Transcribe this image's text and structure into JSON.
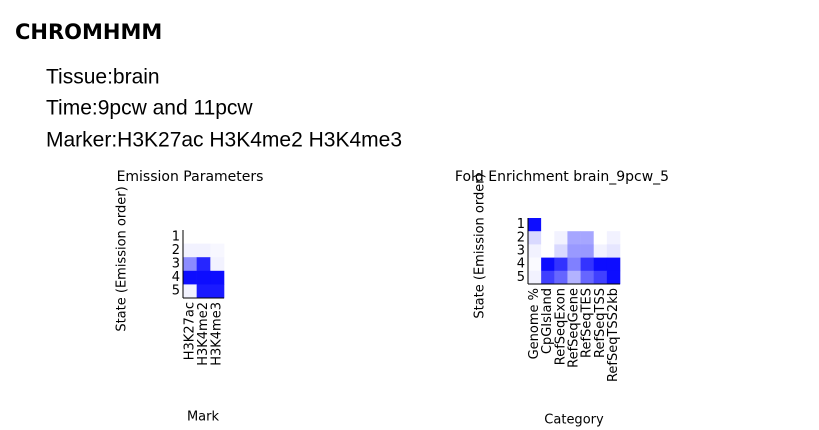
{
  "header": {
    "title": "CHROMHMM",
    "lines": [
      "Tissue:brain",
      "Time:9pcw and 11pcw",
      "Marker:H3K27ac H3K4me2 H3K4me3"
    ]
  },
  "chart_data": [
    {
      "type": "heatmap",
      "title": "Emission Parameters",
      "x_label": "Mark",
      "y_label": "State (Emission order)",
      "color": "#0000ff",
      "rows": [
        "1",
        "2",
        "3",
        "4",
        "5"
      ],
      "columns": [
        "H3K27ac",
        "H3K4me2",
        "H3K4me3"
      ],
      "values": [
        [
          0,
          0,
          0
        ],
        [
          0.05,
          0.05,
          0.03
        ],
        [
          0.45,
          0.85,
          0.05
        ],
        [
          0.95,
          0.95,
          0.95
        ],
        [
          0.05,
          0.9,
          0.9
        ]
      ]
    },
    {
      "type": "heatmap",
      "title": "Fold Enrichment brain_9pcw_5",
      "x_label": "Category",
      "y_label": "State (Emission order)",
      "color": "#0000ff",
      "rows": [
        "1",
        "2",
        "3",
        "4",
        "5"
      ],
      "columns": [
        "Genome %",
        "CpGIsland",
        "RefSeqExon",
        "RefSeqGene",
        "RefSeqTES",
        "RefSeqTSS",
        "RefSeqTSS2kb"
      ],
      "values": [
        [
          0.95,
          0,
          0,
          0,
          0,
          0,
          0
        ],
        [
          0.15,
          0,
          0.05,
          0.35,
          0.35,
          0,
          0.05
        ],
        [
          0.05,
          0,
          0.15,
          0.4,
          0.4,
          0.05,
          0.1
        ],
        [
          0.02,
          0.95,
          0.8,
          0.5,
          0.8,
          0.95,
          0.95
        ],
        [
          0.05,
          0.75,
          0.6,
          0.3,
          0.6,
          0.75,
          0.95
        ]
      ]
    }
  ]
}
